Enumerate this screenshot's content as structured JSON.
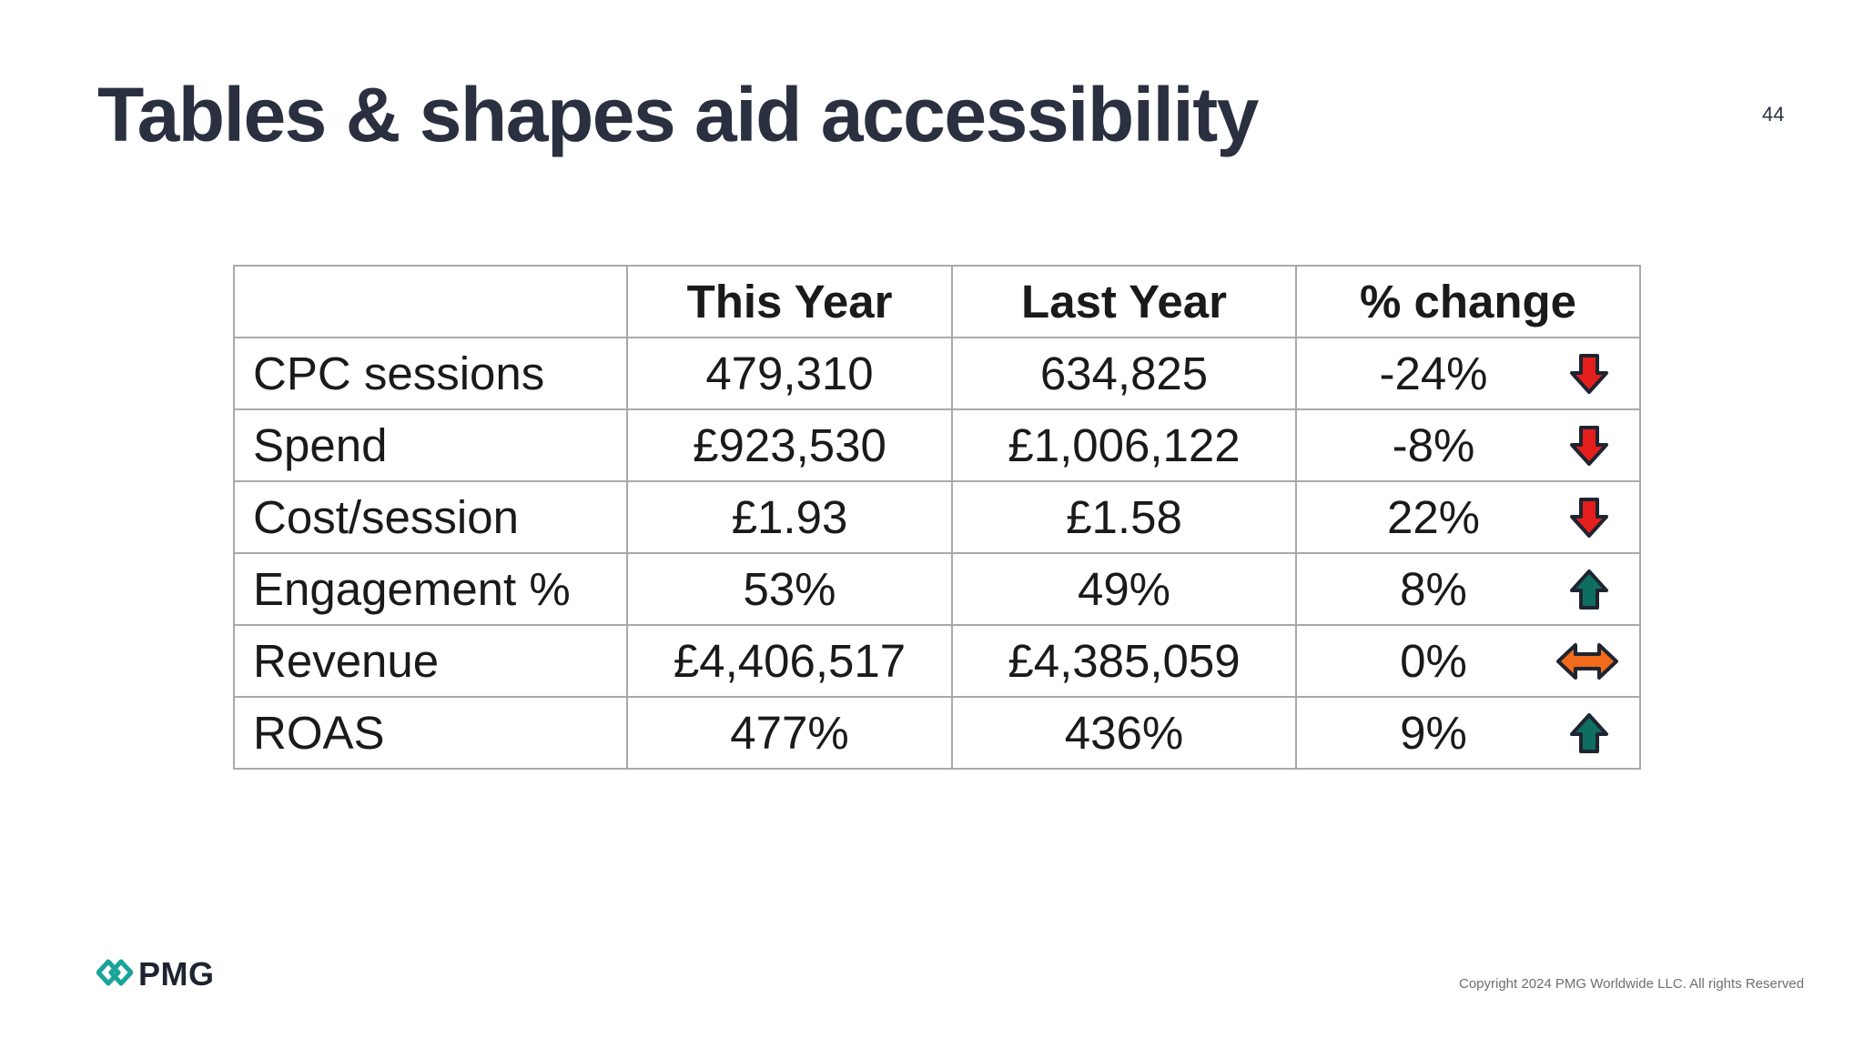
{
  "slide": {
    "title": "Tables & shapes aid accessibility",
    "page_number": "44"
  },
  "table": {
    "headers": [
      "",
      "This Year",
      "Last Year",
      "% change"
    ],
    "rows": [
      {
        "metric": "CPC sessions",
        "this_year": "479,310",
        "last_year": "634,825",
        "change": "-24%",
        "indicator": "arrow-down-icon",
        "indicator_color": "#e51e1e"
      },
      {
        "metric": "Spend",
        "this_year": "£923,530",
        "last_year": "£1,006,122",
        "change": "-8%",
        "indicator": "arrow-down-icon",
        "indicator_color": "#e51e1e"
      },
      {
        "metric": "Cost/session",
        "this_year": "£1.93",
        "last_year": "£1.58",
        "change": "22%",
        "indicator": "arrow-down-icon",
        "indicator_color": "#e51e1e"
      },
      {
        "metric": "Engagement %",
        "this_year": "53%",
        "last_year": "49%",
        "change": "8%",
        "indicator": "arrow-up-icon",
        "indicator_color": "#0f6e62"
      },
      {
        "metric": "Revenue",
        "this_year": "£4,406,517",
        "last_year": "£4,385,059",
        "change": "0%",
        "indicator": "arrow-left-right-icon",
        "indicator_color": "#f26a1b"
      },
      {
        "metric": "ROAS",
        "this_year": "477%",
        "last_year": "436%",
        "change": "9%",
        "indicator": "arrow-up-icon",
        "indicator_color": "#0f6e62"
      }
    ]
  },
  "footer": {
    "logo_text": "PMG",
    "logo_icon": "pmg-diamond-logo-icon",
    "logo_color": "#1aa39a",
    "copyright": "Copyright 2024 PMG Worldwide LLC. All rights Reserved"
  }
}
